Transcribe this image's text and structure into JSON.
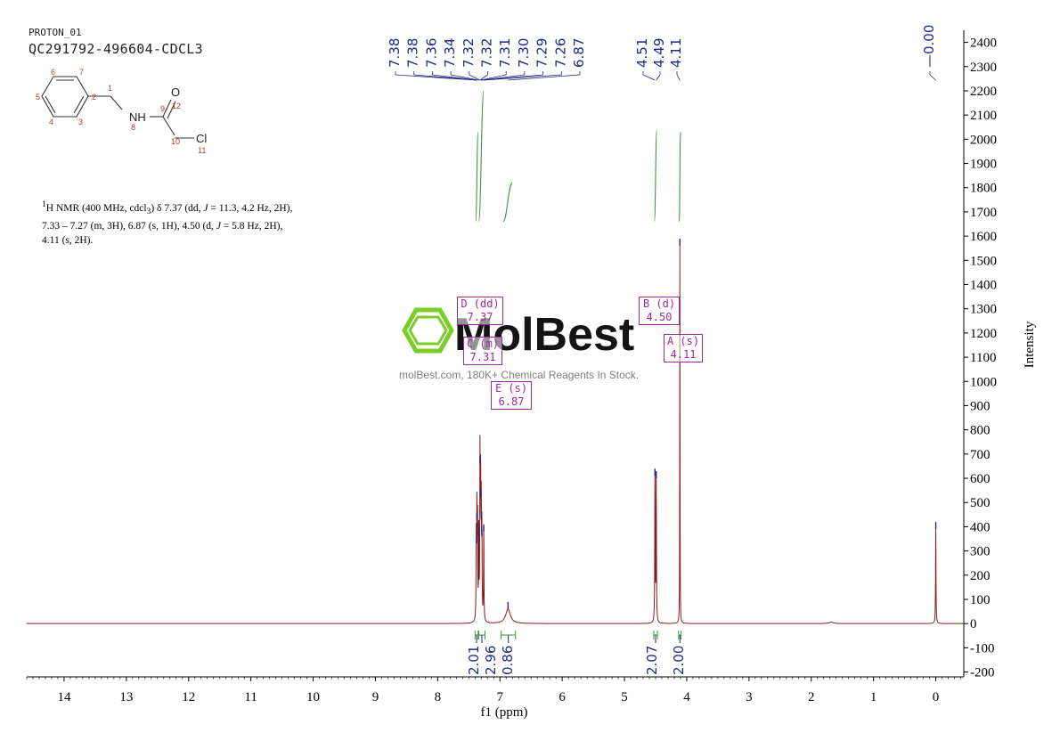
{
  "header": {
    "experiment": "PROTON_01",
    "sample": "QC291792-496604-CDCL3"
  },
  "structure": {
    "atom_numbers": [
      "1",
      "2",
      "3",
      "4",
      "5",
      "6",
      "7",
      "8",
      "9",
      "10",
      "11",
      "12"
    ],
    "atoms": {
      "nh": "NH",
      "o": "O",
      "cl": "Cl"
    }
  },
  "nmr_text": {
    "sup": "1",
    "line1_a": "H NMR (400 MHz, cdcl",
    "line1_sub": "3",
    "line1_b": ") δ 7.37 (dd, ",
    "j": "J",
    "line1_c": " = 11.3, 4.2 Hz, 2H),",
    "line2_a": "7.33 – 7.27 (m, 3H), 6.87 (s, 1H), 4.50 (d, ",
    "line2_b": " = 5.8 Hz, 2H),",
    "line3": "4.11 (s, 2H)."
  },
  "watermark": {
    "name": "MolBest",
    "sub": "molBest.com, 180K+ Chemical Reagents In Stock."
  },
  "multiplets": [
    {
      "label": "D (dd)",
      "value": "7.37"
    },
    {
      "label": "C (m)",
      "value": "7.31"
    },
    {
      "label": "E (s)",
      "value": "6.87"
    },
    {
      "label": "B (d)",
      "value": "4.50"
    },
    {
      "label": "A (s)",
      "value": "4.11"
    }
  ],
  "chart_data": {
    "type": "line",
    "xlabel": "f1 (ppm)",
    "ylabel": "Intensity",
    "x_reversed": true,
    "xlim": [
      14.6,
      -0.45
    ],
    "ylim": [
      -220,
      2450
    ],
    "x_ticks": [
      14,
      13,
      12,
      11,
      10,
      9,
      8,
      7,
      6,
      5,
      4,
      3,
      2,
      1,
      0
    ],
    "y_ticks": [
      -200,
      -100,
      0,
      100,
      200,
      300,
      400,
      500,
      600,
      700,
      800,
      900,
      1000,
      1100,
      1200,
      1300,
      1400,
      1500,
      1600,
      1700,
      1800,
      1900,
      2000,
      2100,
      2200,
      2300,
      2400
    ],
    "peaks": [
      {
        "ppm": 7.38,
        "height": 330
      },
      {
        "ppm": 7.37,
        "height": 430
      },
      {
        "ppm": 7.36,
        "height": 390
      },
      {
        "ppm": 7.34,
        "height": 360
      },
      {
        "ppm": 7.32,
        "height": 660
      },
      {
        "ppm": 7.31,
        "height": 520
      },
      {
        "ppm": 7.3,
        "height": 430
      },
      {
        "ppm": 7.29,
        "height": 360
      },
      {
        "ppm": 7.26,
        "height": 380
      },
      {
        "ppm": 6.87,
        "height": 60
      },
      {
        "ppm": 4.51,
        "height": 610
      },
      {
        "ppm": 4.49,
        "height": 600
      },
      {
        "ppm": 4.11,
        "height": 1560
      },
      {
        "ppm": 0.0,
        "height": 390
      }
    ],
    "peak_labels": [
      {
        "ppm": 7.38,
        "label": "7.38"
      },
      {
        "ppm": 7.38,
        "label": "7.38"
      },
      {
        "ppm": 7.36,
        "label": "7.36"
      },
      {
        "ppm": 7.34,
        "label": "7.34"
      },
      {
        "ppm": 7.32,
        "label": "7.32"
      },
      {
        "ppm": 7.32,
        "label": "7.32"
      },
      {
        "ppm": 7.31,
        "label": "7.31"
      },
      {
        "ppm": 7.3,
        "label": "7.30"
      },
      {
        "ppm": 7.29,
        "label": "7.29"
      },
      {
        "ppm": 7.26,
        "label": "7.26"
      },
      {
        "ppm": 6.87,
        "label": "6.87"
      },
      {
        "ppm": 4.51,
        "label": "4.51"
      },
      {
        "ppm": 4.49,
        "label": "4.49"
      },
      {
        "ppm": 4.11,
        "label": "4.11"
      },
      {
        "ppm": 0.0,
        "label": "0.00"
      }
    ],
    "integrals": [
      {
        "from": 7.4,
        "to": 7.35,
        "value": "2.01"
      },
      {
        "from": 7.34,
        "to": 7.24,
        "value": "2.96"
      },
      {
        "from": 6.98,
        "to": 6.75,
        "value": "0.86"
      },
      {
        "from": 4.53,
        "to": 4.47,
        "value": "2.07"
      },
      {
        "from": 4.13,
        "to": 4.09,
        "value": "2.00"
      }
    ],
    "integral_curves": [
      {
        "from": 7.39,
        "to": 7.35,
        "low": 1660,
        "high": 2030
      },
      {
        "from": 7.34,
        "to": 7.26,
        "low": 1660,
        "high": 2200
      },
      {
        "from": 6.95,
        "to": 6.8,
        "low": 1660,
        "high": 1820
      },
      {
        "from": 4.52,
        "to": 4.48,
        "low": 1660,
        "high": 2040
      },
      {
        "from": 4.12,
        "to": 4.1,
        "low": 1660,
        "high": 2030
      }
    ],
    "colors": {
      "spectrum": "#8b1a1a",
      "labels": "#1f2a8a",
      "integral": "#3a9a3a",
      "multiplet": "#9c2a9c",
      "watermark_logo": "#7ccc2a"
    }
  }
}
